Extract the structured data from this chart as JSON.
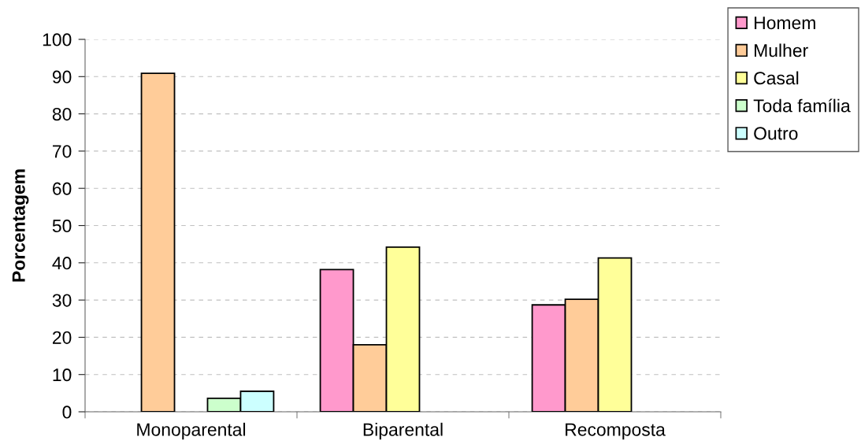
{
  "chart_data": {
    "type": "bar",
    "categories": [
      "Monoparental",
      "Biparental",
      "Recomposta"
    ],
    "ylabel": "Porcentagem",
    "ylim": [
      0,
      100
    ],
    "yticks": [
      0,
      10,
      20,
      30,
      40,
      50,
      60,
      70,
      80,
      90,
      100
    ],
    "grid": "y",
    "legend": "top right",
    "series": [
      {
        "name": "Homem",
        "color": "#ff99cc",
        "values": [
          null,
          38.2,
          28.7
        ]
      },
      {
        "name": "Mulher",
        "color": "#ffcc99",
        "values": [
          90.9,
          18.0,
          30.2
        ]
      },
      {
        "name": "Casal",
        "color": "#ffff99",
        "values": [
          null,
          44.2,
          41.3
        ]
      },
      {
        "name": "Toda família",
        "color": "#ccffcc",
        "values": [
          3.6,
          null,
          null
        ]
      },
      {
        "name": "Outro",
        "color": "#ccffff",
        "values": [
          5.5,
          null,
          null
        ]
      }
    ]
  }
}
